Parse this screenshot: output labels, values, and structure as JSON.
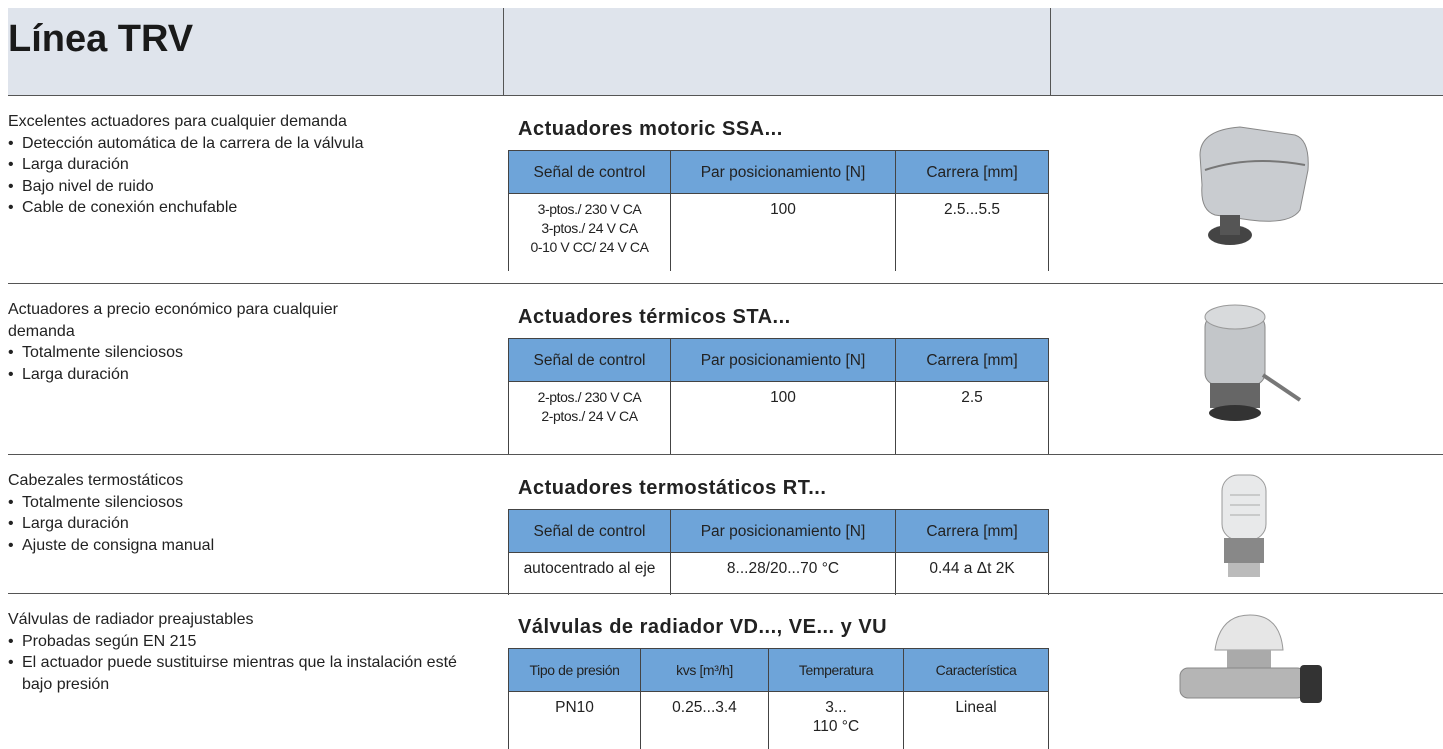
{
  "header": {
    "title": "Línea TRV"
  },
  "sections": [
    {
      "description": {
        "intro": "Excelentes  actuadores para cualquier demanda",
        "bullets": [
          "Detección automática de la carrera de la válvula",
          "Larga duración",
          "Bajo nivel de ruido",
          "Cable de conexión enchufable"
        ]
      },
      "product": {
        "title": "Actuadores motoric SSA...",
        "table": {
          "headers": [
            "Señal de control",
            "Par posicionamiento [N]",
            "Carrera [mm]"
          ],
          "rows": [
            [
              [
                "3-ptos./ 230 V CA",
                "3-ptos./ 24 V CA",
                "0-10 V CC/ 24 V CA"
              ],
              [
                "100"
              ],
              [
                "2.5...5.5"
              ]
            ]
          ]
        }
      }
    },
    {
      "description": {
        "intro": "Actuadores a precio económico para cualquier demanda",
        "bullets": [
          "Totalmente silenciosos",
          "Larga duración"
        ]
      },
      "product": {
        "title": "Actuadores térmicos STA...",
        "table": {
          "headers": [
            "Señal de control",
            "Par posicionamiento [N]",
            "Carrera [mm]"
          ],
          "rows": [
            [
              [
                "2-ptos./ 230 V CA",
                "2-ptos./ 24 V CA"
              ],
              [
                "100"
              ],
              [
                "2.5"
              ]
            ]
          ]
        }
      }
    },
    {
      "description": {
        "intro": "Cabezales termostáticos",
        "bullets": [
          "Totalmente silenciosos",
          "Larga duración",
          "Ajuste de consigna manual"
        ]
      },
      "product": {
        "title": "Actuadores termostáticos RT...",
        "table": {
          "headers": [
            "Señal de control",
            "Par posicionamiento [N]",
            "Carrera [mm]"
          ],
          "rows": [
            [
              [
                "autocentrado al eje"
              ],
              [
                "8...28/20...70 °C"
              ],
              [
                "0.44 a  Δt 2K"
              ]
            ]
          ]
        }
      }
    },
    {
      "description": {
        "intro": "Válvulas de radiador preajustables",
        "bullets": [
          "Probadas según EN 215",
          "El actuador puede sustituirse mientras que la instalación esté bajo presión"
        ]
      },
      "product": {
        "title": "Válvulas de radiador VD..., VE... y VU",
        "table": {
          "headers": [
            "Tipo de presión",
            "kvs [m³/h]",
            "Temperatura",
            "Característica"
          ],
          "rows": [
            [
              [
                "PN10"
              ],
              [
                "0.25...3.4"
              ],
              [
                "3...",
                "110 °C"
              ],
              [
                "Lineal"
              ]
            ]
          ]
        }
      }
    }
  ]
}
